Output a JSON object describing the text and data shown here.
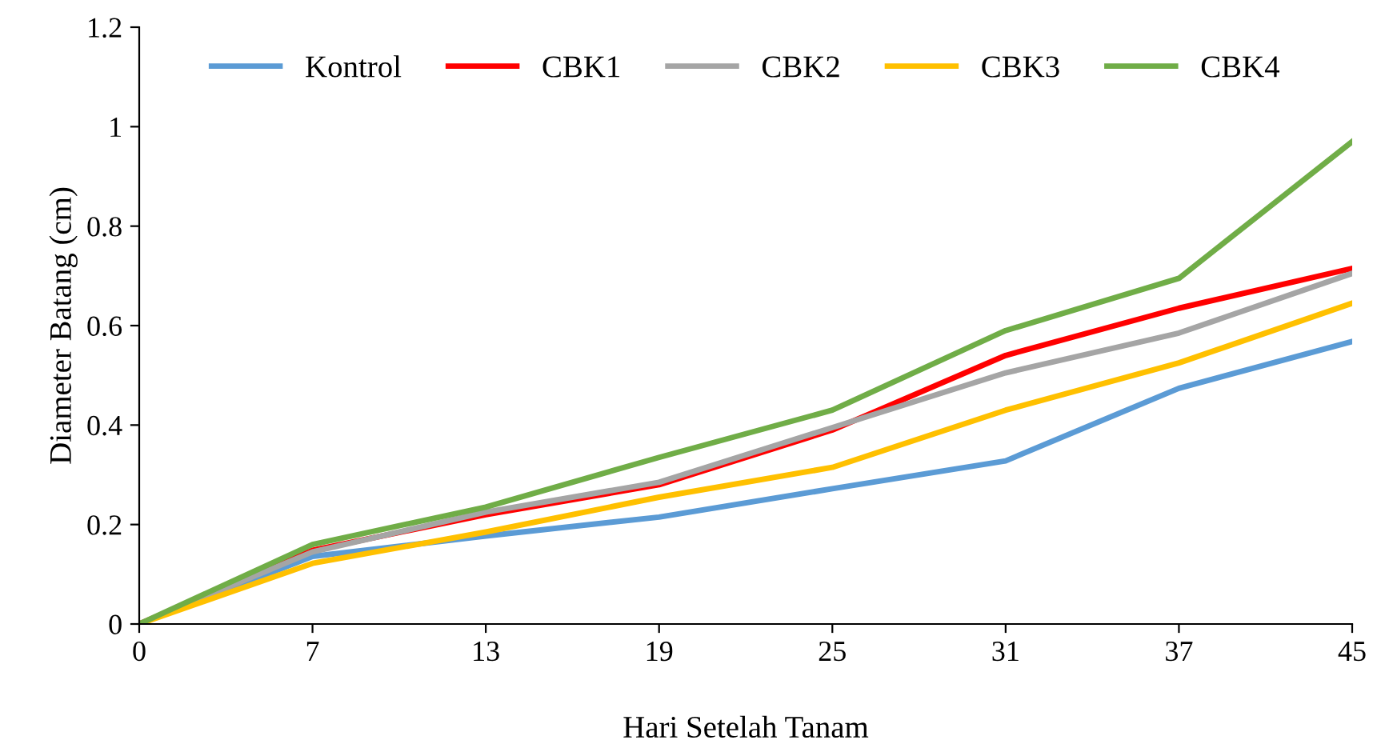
{
  "chart_data": {
    "type": "line",
    "xlabel": "Hari Setelah Tanam",
    "ylabel": "Diameter Batang (cm)",
    "categories": [
      "0",
      "7",
      "13",
      "19",
      "25",
      "31",
      "37",
      "45"
    ],
    "series": [
      {
        "name": "Kontrol",
        "color": "#5b9bd5",
        "values": [
          0,
          0.136,
          0.177,
          0.215,
          0.272,
          0.328,
          0.474,
          0.568
        ]
      },
      {
        "name": "CBK1",
        "color": "#ff0000",
        "values": [
          0,
          0.148,
          0.22,
          0.28,
          0.39,
          0.54,
          0.635,
          0.715
        ]
      },
      {
        "name": "CBK2",
        "color": "#a5a5a5",
        "values": [
          0,
          0.145,
          0.225,
          0.285,
          0.395,
          0.505,
          0.585,
          0.705
        ]
      },
      {
        "name": "CBK3",
        "color": "#ffc000",
        "values": [
          0,
          0.122,
          0.185,
          0.255,
          0.315,
          0.43,
          0.525,
          0.645
        ]
      },
      {
        "name": "CBK4",
        "color": "#70ad47",
        "values": [
          0,
          0.16,
          0.235,
          0.335,
          0.43,
          0.59,
          0.695,
          0.97
        ]
      }
    ],
    "ylim": [
      0,
      1.2
    ],
    "yticks": [
      0,
      0.2,
      0.4,
      0.6,
      0.8,
      1,
      1.2
    ],
    "grid": false,
    "legend": "top",
    "marker": "none",
    "line_style": "solid"
  }
}
